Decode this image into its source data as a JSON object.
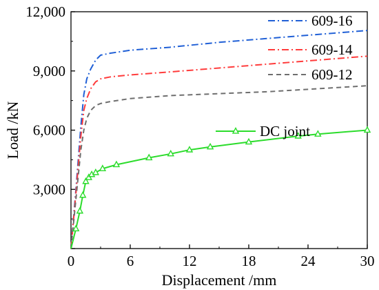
{
  "chart_data": {
    "type": "line",
    "xlabel": "Displacement /mm",
    "ylabel": "Load /kN",
    "xlim": [
      0,
      30
    ],
    "ylim": [
      0,
      12000
    ],
    "xticks": [
      0,
      6,
      12,
      18,
      24,
      30
    ],
    "yticks": [
      0,
      3000,
      6000,
      9000,
      12000
    ],
    "xtick_labels": [
      "0",
      "6",
      "12",
      "18",
      "24",
      "30"
    ],
    "ytick_labels": [
      "",
      "3,000",
      "6,000",
      "9,000",
      "12,000"
    ],
    "grid": false,
    "legend_position": "right",
    "series": [
      {
        "name": "609-16",
        "color": "#1f5fd6",
        "dash": "dashdot",
        "marker": "none",
        "x": [
          0,
          0.5,
          1.0,
          1.3,
          1.6,
          2.0,
          2.5,
          3.0,
          4.0,
          6.0,
          10.0,
          15.0,
          20.0,
          25.0,
          30.0
        ],
        "y": [
          0,
          3000,
          6200,
          7800,
          8600,
          9100,
          9550,
          9800,
          9900,
          10050,
          10200,
          10450,
          10650,
          10850,
          11050
        ]
      },
      {
        "name": "609-14",
        "color": "#ff3b3b",
        "dash": "dashdot",
        "marker": "none",
        "x": [
          0,
          0.5,
          1.0,
          1.3,
          1.6,
          2.0,
          2.5,
          3.0,
          4.0,
          6.0,
          10.0,
          15.0,
          20.0,
          25.0,
          30.0
        ],
        "y": [
          0,
          2800,
          5700,
          7000,
          7600,
          8100,
          8450,
          8600,
          8700,
          8800,
          8950,
          9150,
          9350,
          9550,
          9750
        ]
      },
      {
        "name": "609-12",
        "color": "#6e6e6e",
        "dash": "dashed",
        "marker": "none",
        "x": [
          0,
          0.5,
          1.0,
          1.3,
          1.6,
          2.0,
          2.5,
          3.0,
          4.0,
          6.0,
          10.0,
          15.0,
          20.0,
          25.0,
          30.0
        ],
        "y": [
          0,
          2500,
          5000,
          6000,
          6600,
          7000,
          7250,
          7350,
          7450,
          7600,
          7750,
          7850,
          7950,
          8100,
          8250
        ]
      },
      {
        "name": "DC joint",
        "color": "#2bdc2b",
        "dash": "solid",
        "marker": "triangle",
        "x": [
          0,
          0.5,
          0.9,
          1.2,
          1.5,
          1.8,
          2.1,
          2.5,
          3.2,
          4.6,
          7.9,
          10.1,
          12.0,
          14.1,
          18.0,
          23.0,
          25.0,
          30.0
        ],
        "y": [
          0,
          1000,
          1900,
          2700,
          3400,
          3600,
          3750,
          3850,
          4050,
          4250,
          4600,
          4800,
          5000,
          5150,
          5400,
          5700,
          5800,
          6000
        ]
      }
    ]
  }
}
